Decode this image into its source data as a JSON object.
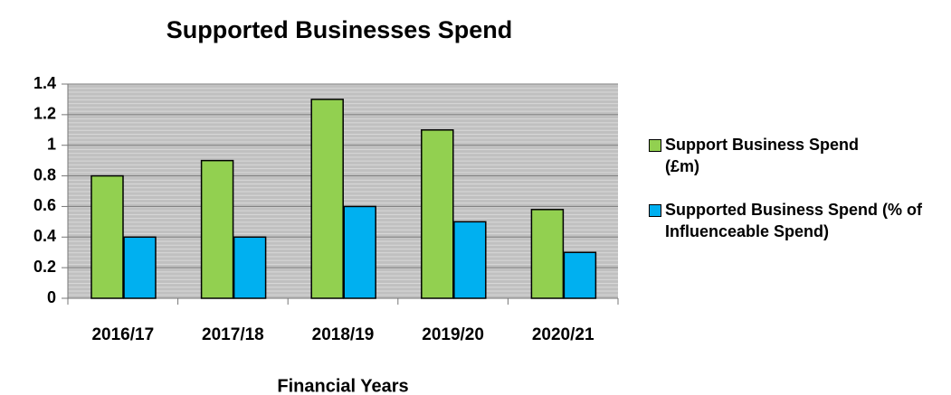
{
  "chart_data": {
    "type": "bar",
    "title": "Supported Businesses Spend",
    "x_label": "Financial Years",
    "categories": [
      "2016/17",
      "2017/18",
      "2018/19",
      "2019/20",
      "2020/21"
    ],
    "series": [
      {
        "name": "Support Business Spend (£m)",
        "color": "#92d050",
        "values": [
          0.8,
          0.9,
          1.3,
          1.1,
          0.58
        ]
      },
      {
        "name": "Supported Business Spend (% of Influenceable Spend)",
        "color": "#00b0f0",
        "values": [
          0.4,
          0.4,
          0.6,
          0.5,
          0.3
        ]
      }
    ],
    "ylim": [
      0,
      1.4
    ],
    "yticks": [
      0,
      0.2,
      0.4,
      0.6,
      0.8,
      1,
      1.2,
      1.4
    ],
    "grid": true,
    "legend": "right"
  }
}
